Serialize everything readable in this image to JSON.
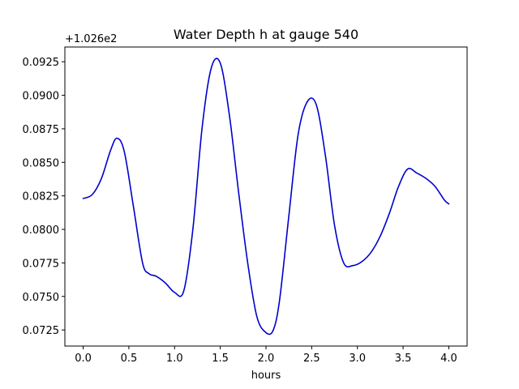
{
  "chart_data": {
    "type": "line",
    "title": "Water Depth h at gauge 540",
    "xlabel": "hours",
    "ylabel": "",
    "offset_label": "+1.026e2",
    "xlim": [
      -0.2,
      4.2
    ],
    "ylim": [
      0.0713,
      0.0936
    ],
    "xticks": [
      0.0,
      0.5,
      1.0,
      1.5,
      2.0,
      2.5,
      3.0,
      3.5,
      4.0
    ],
    "xtick_labels": [
      "0.0",
      "0.5",
      "1.0",
      "1.5",
      "2.0",
      "2.5",
      "3.0",
      "3.5",
      "4.0"
    ],
    "yticks": [
      0.0725,
      0.075,
      0.0775,
      0.08,
      0.0825,
      0.085,
      0.0875,
      0.09,
      0.0925
    ],
    "ytick_labels": [
      "0.0725",
      "0.0750",
      "0.0775",
      "0.0800",
      "0.0825",
      "0.0850",
      "0.0875",
      "0.0900",
      "0.0925"
    ],
    "grid": false,
    "colors": {
      "line": "#0000cc"
    },
    "x": [
      0.0,
      0.1,
      0.2,
      0.3,
      0.37,
      0.45,
      0.55,
      0.65,
      0.72,
      0.8,
      0.9,
      1.0,
      1.1,
      1.2,
      1.3,
      1.4,
      1.5,
      1.6,
      1.7,
      1.8,
      1.9,
      2.0,
      2.08,
      2.15,
      2.25,
      2.35,
      2.45,
      2.55,
      2.65,
      2.75,
      2.85,
      2.95,
      3.05,
      3.15,
      3.25,
      3.35,
      3.45,
      3.55,
      3.65,
      3.75,
      3.85,
      3.95,
      4.0
    ],
    "values": [
      0.0823,
      0.0826,
      0.0838,
      0.0859,
      0.0868,
      0.0858,
      0.0817,
      0.0775,
      0.0767,
      0.0765,
      0.076,
      0.0753,
      0.0754,
      0.08,
      0.0875,
      0.092,
      0.0924,
      0.0885,
      0.0828,
      0.0775,
      0.0735,
      0.0723,
      0.0725,
      0.0748,
      0.081,
      0.087,
      0.0895,
      0.0893,
      0.0855,
      0.0803,
      0.0775,
      0.0773,
      0.0776,
      0.0783,
      0.0795,
      0.0812,
      0.0832,
      0.0845,
      0.0842,
      0.0838,
      0.0832,
      0.0822,
      0.0819
    ]
  }
}
